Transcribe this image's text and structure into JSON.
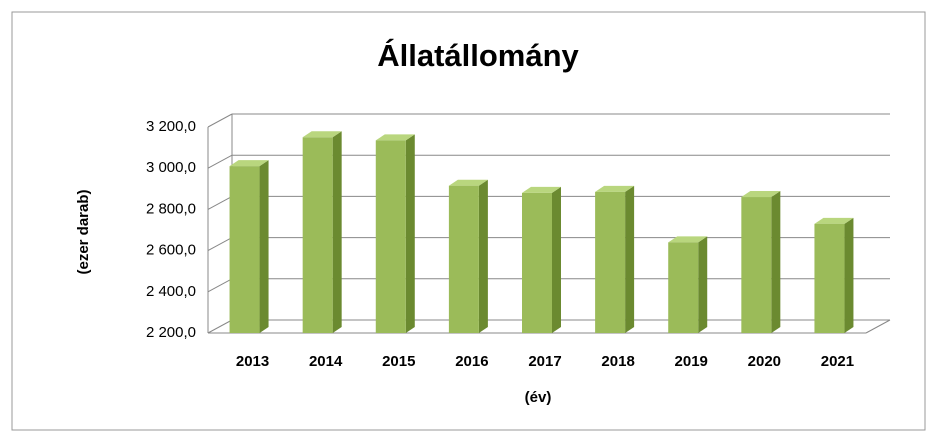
{
  "chart_data": {
    "type": "bar",
    "title": "Állatállomány",
    "categories": [
      "2013",
      "2014",
      "2015",
      "2016",
      "2017",
      "2018",
      "2019",
      "2020",
      "2021"
    ],
    "values": [
      3010,
      3150,
      3135,
      2915,
      2880,
      2885,
      2640,
      2860,
      2730
    ],
    "color": "#9bbb59",
    "ylabel": "(ezer darab)",
    "xlabel": "(év)",
    "ylim": [
      2200,
      3200
    ],
    "yticks": [
      {
        "value": 2200,
        "label": "2 200,0"
      },
      {
        "value": 2400,
        "label": "2 400,0"
      },
      {
        "value": 2600,
        "label": "2 600,0"
      },
      {
        "value": 2800,
        "label": "2 800,0"
      },
      {
        "value": 3000,
        "label": "3 000,0"
      },
      {
        "value": 3200,
        "label": "3 200,0"
      }
    ],
    "grid": true
  }
}
